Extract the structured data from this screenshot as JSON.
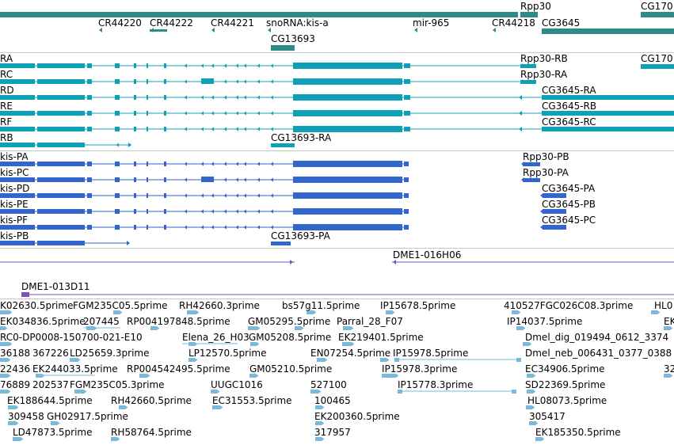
{
  "colors": {
    "gene": "#2e8b87",
    "transcript": "#0fa0b8",
    "protein": "#3366cc",
    "clone": "#7a52b8",
    "est": "#7ab8dc"
  },
  "tracks": {
    "genes": {
      "items": [
        {
          "label": "Rpp30"
        },
        {
          "label": "CG170"
        },
        {
          "label": "CR44220"
        },
        {
          "label": "CR44222"
        },
        {
          "label": "CR44221"
        },
        {
          "label": "snoRNA:kis-a"
        },
        {
          "label": "mir-965"
        },
        {
          "label": "CR44218"
        },
        {
          "label": "CG3645"
        },
        {
          "label": "CG13693"
        }
      ]
    },
    "transcripts": {
      "left_labels": [
        "RA",
        "RC",
        "RD",
        "RE",
        "RF",
        "RB"
      ],
      "right_labels": [
        "Rpp30-RB",
        "CG170",
        "Rpp30-RA",
        "CG3645-RA",
        "CG3645-RB",
        "CG3645-RC",
        "CG13693-RA"
      ]
    },
    "proteins": {
      "left_labels": [
        "kis-PA",
        "kis-PC",
        "kis-PD",
        "kis-PE",
        "kis-PF",
        "kis-PB"
      ],
      "right_labels": [
        "Rpp30-PB",
        "Rpp30-PA",
        "CG3645-PA",
        "CG3645-PB",
        "CG3645-PC",
        "CG13693-PA"
      ]
    },
    "clones": {
      "labels": [
        "DME1-016H06",
        "DME1-013D11"
      ]
    },
    "ests": {
      "labels": [
        "K02630.5prime",
        "FGM235C05.5prime",
        "RH42660.3prime",
        "bs57g11.5prime",
        "IP15678.5prime",
        "410527FGC026C08.3prime",
        "HL0",
        "EK034836.5prime",
        "207445",
        "RP004197848.5prime",
        "GM05295.5prime",
        "Parral_28_F07",
        "IP14037.5prime",
        "EK",
        "RC0-DP0008-150700-021-E10",
        "Elena_26_H03",
        "GM05208.5prime",
        "EK219401.5prime",
        "36188",
        "367226",
        "LD25659.3prime",
        "LP12570.5prime",
        "EN07254.5prime",
        "IP15978.5prime",
        "Dmel_dig_019494_0612_3374",
        "22436",
        "EK244033.5prime",
        "RP004542495.5prime",
        "GM05210.5prime",
        "IP15978.3prime",
        "Dmel_neb_006431_0377_0388",
        "32",
        "76889",
        "202537",
        "FGM235C05.3prime",
        "UUGC1016",
        "527100",
        "IP15778.3prime",
        "EC34906.5prime",
        "EK188644.5prime",
        "RH42660.5prime",
        "EC31553.5prime",
        "100465",
        "SD22369.5prime",
        "309458",
        "GH02917.5prime",
        "EK200360.5prime",
        "HL08073.5prime",
        "LD47873.5prime",
        "RH58764.5prime",
        "317957",
        "305417",
        "EK185350.5prime"
      ]
    }
  }
}
